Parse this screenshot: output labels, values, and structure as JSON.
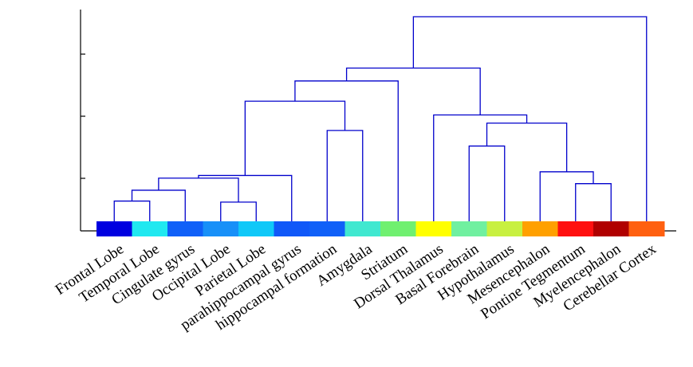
{
  "leaves": [
    {
      "label": "Frontal Lobe",
      "color": "#0000e0"
    },
    {
      "label": "Temporal Lobe",
      "color": "#20e8f0"
    },
    {
      "label": "Cingulate gyrus",
      "color": "#1060f8"
    },
    {
      "label": "Occipital Lobe",
      "color": "#1890f8"
    },
    {
      "label": "Parietal Lobe",
      "color": "#10c8f8"
    },
    {
      "label": "parahippocampal gyrus",
      "color": "#1058f8"
    },
    {
      "label": "hippocampal formation",
      "color": "#1060f8"
    },
    {
      "label": "Amygdala",
      "color": "#40e8d0"
    },
    {
      "label": "Striatum",
      "color": "#70f070"
    },
    {
      "label": "Dorsal Thalamus",
      "color": "#ffff00"
    },
    {
      "label": "Basal Forebrain",
      "color": "#70f0a0"
    },
    {
      "label": "Hypothalamus",
      "color": "#c8f040"
    },
    {
      "label": "Mesencephalon",
      "color": "#ffa000"
    },
    {
      "label": "Pontine Tegmentum",
      "color": "#ff1010"
    },
    {
      "label": "Myelencephalon",
      "color": "#b00000"
    },
    {
      "label": "Cerebellar Cortex",
      "color": "#ff6010"
    }
  ],
  "link_color": "#0000cc",
  "merges": [
    {
      "a": "L0",
      "b": "L1",
      "h": 0.099
    },
    {
      "a": "L3",
      "b": "L4",
      "h": 0.094
    },
    {
      "a": "M0",
      "b": "L2",
      "h": 0.152
    },
    {
      "a": "M2",
      "b": "M1",
      "h": 0.211
    },
    {
      "a": "M3",
      "b": "L5",
      "h": 0.224
    },
    {
      "a": "L6",
      "b": "L7",
      "h": 0.444
    },
    {
      "a": "M4",
      "b": "M5",
      "h": 0.587
    },
    {
      "a": "M6",
      "b": "L8",
      "h": 0.686
    },
    {
      "a": "L10",
      "b": "L11",
      "h": 0.368
    },
    {
      "a": "L13",
      "b": "L14",
      "h": 0.184
    },
    {
      "a": "L12",
      "b": "M9",
      "h": 0.242
    },
    {
      "a": "M8",
      "b": "M10",
      "h": 0.48
    },
    {
      "a": "L9",
      "b": "M11",
      "h": 0.52
    },
    {
      "a": "M7",
      "b": "M12",
      "h": 0.749
    },
    {
      "a": "M13",
      "b": "L15",
      "h": 1.0
    }
  ]
}
